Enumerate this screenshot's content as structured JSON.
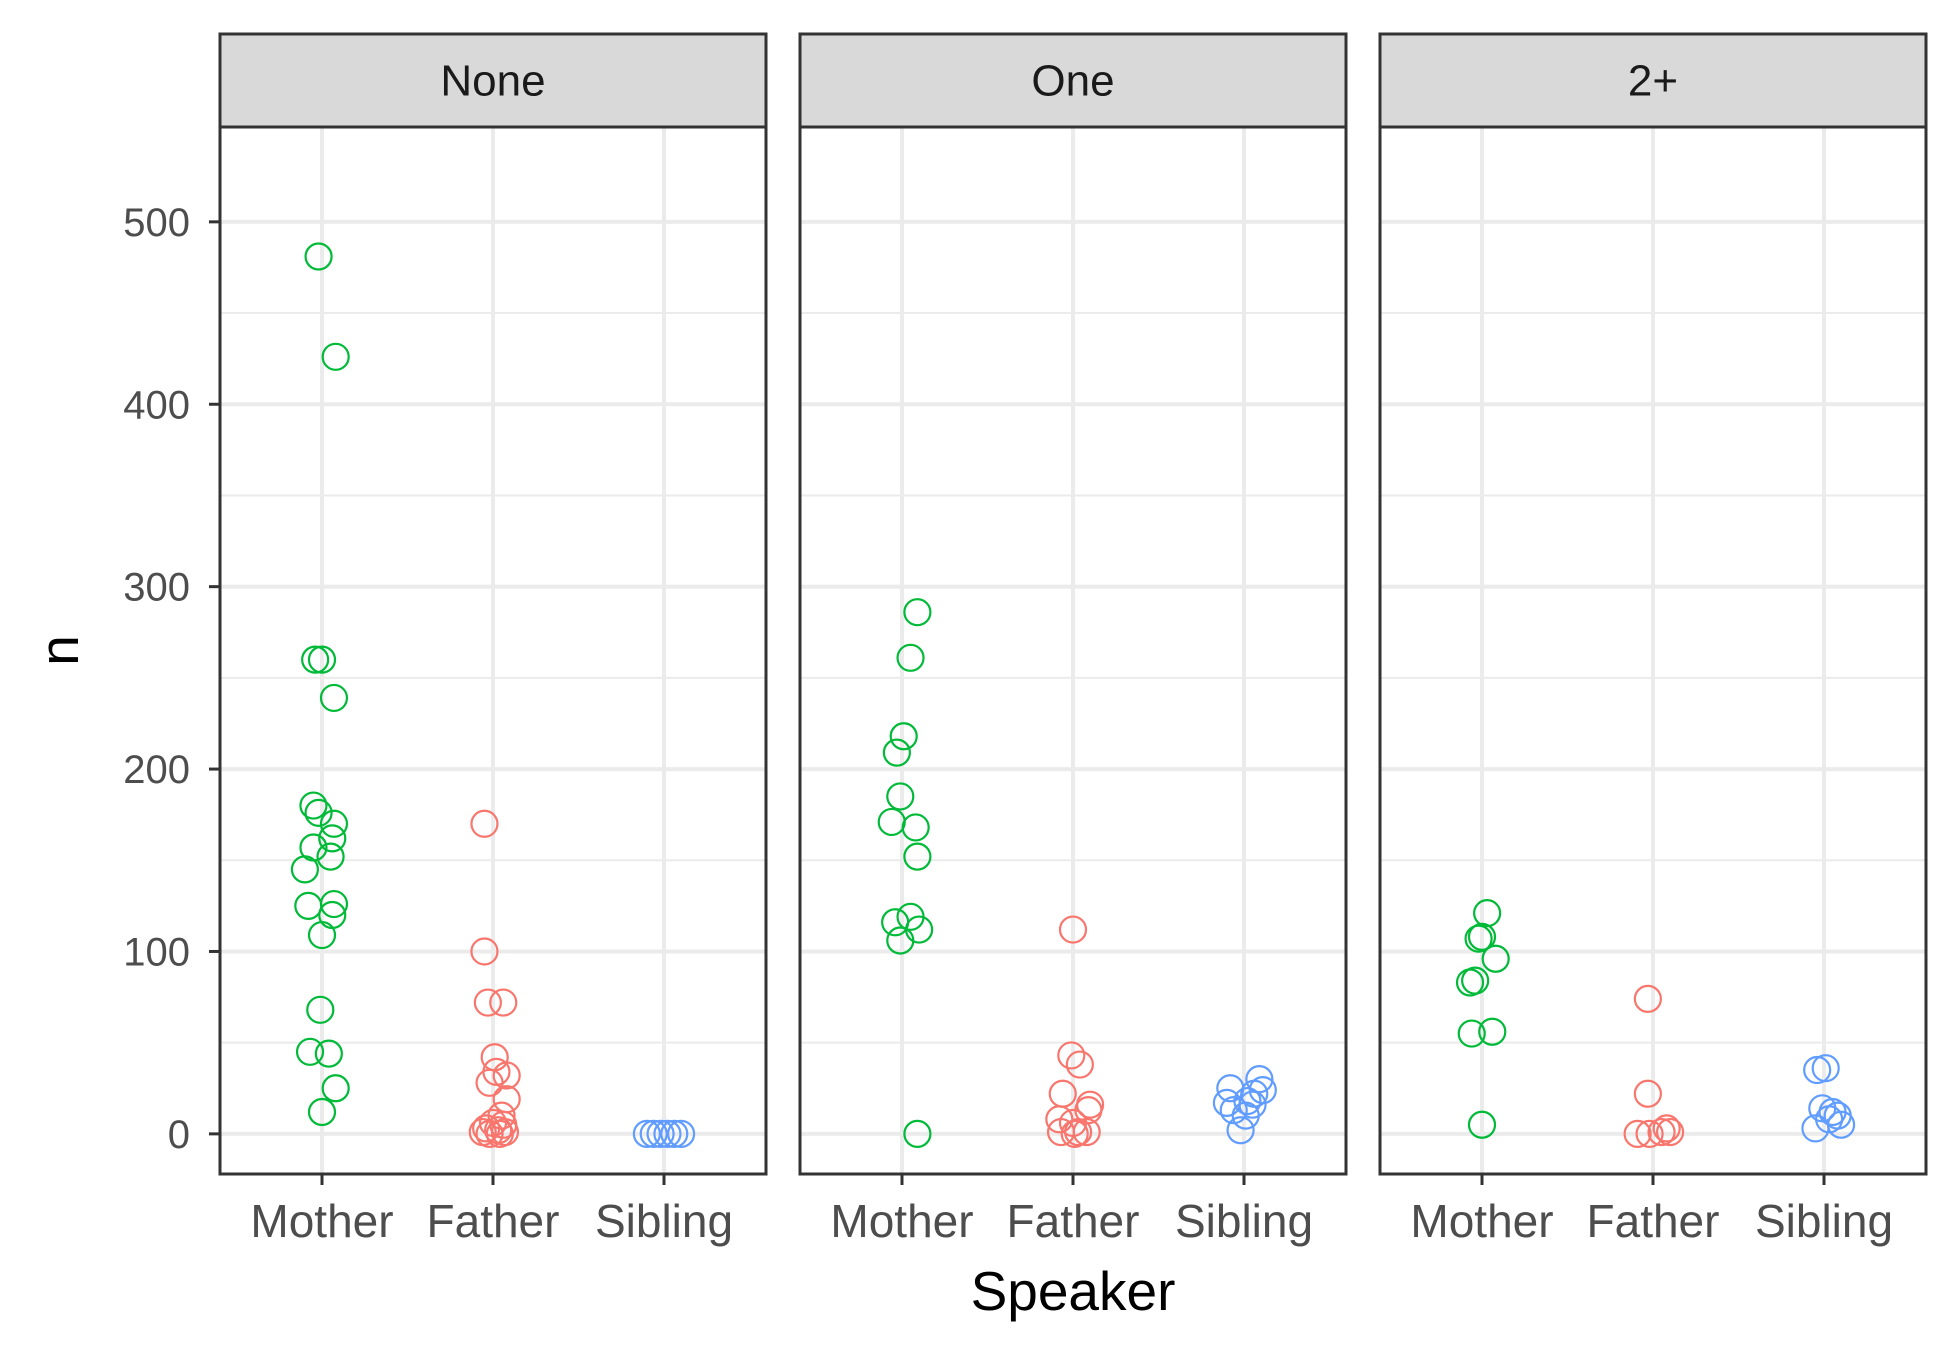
{
  "chart_data": {
    "type": "scatter",
    "xlabel": "Speaker",
    "ylabel": "n",
    "categories": [
      "Mother",
      "Father",
      "Sibling"
    ],
    "ylim": [
      -22,
      552
    ],
    "yticks": [
      0,
      100,
      200,
      300,
      400,
      500
    ],
    "grid": true,
    "colors": {
      "Mother": "#00BA38",
      "Father": "#F8766D",
      "Sibling": "#619CFF"
    },
    "panels": [
      {
        "title": "None",
        "points": {
          "Mother": [
            {
              "jitter": -0.02,
              "y": 481
            },
            {
              "jitter": 0.08,
              "y": 426
            },
            {
              "jitter": -0.04,
              "y": 260
            },
            {
              "jitter": 0.0,
              "y": 260
            },
            {
              "jitter": 0.07,
              "y": 239
            },
            {
              "jitter": -0.05,
              "y": 180
            },
            {
              "jitter": -0.02,
              "y": 176
            },
            {
              "jitter": 0.07,
              "y": 170
            },
            {
              "jitter": 0.06,
              "y": 162
            },
            {
              "jitter": -0.05,
              "y": 157
            },
            {
              "jitter": 0.05,
              "y": 152
            },
            {
              "jitter": -0.1,
              "y": 145
            },
            {
              "jitter": 0.07,
              "y": 126
            },
            {
              "jitter": -0.08,
              "y": 125
            },
            {
              "jitter": 0.06,
              "y": 120
            },
            {
              "jitter": 0.0,
              "y": 109
            },
            {
              "jitter": -0.01,
              "y": 68
            },
            {
              "jitter": -0.07,
              "y": 45
            },
            {
              "jitter": 0.04,
              "y": 44
            },
            {
              "jitter": 0.08,
              "y": 25
            },
            {
              "jitter": 0.0,
              "y": 12
            }
          ],
          "Father": [
            {
              "jitter": -0.05,
              "y": 170
            },
            {
              "jitter": -0.05,
              "y": 100
            },
            {
              "jitter": -0.03,
              "y": 72
            },
            {
              "jitter": 0.06,
              "y": 72
            },
            {
              "jitter": 0.01,
              "y": 42
            },
            {
              "jitter": 0.02,
              "y": 34
            },
            {
              "jitter": 0.08,
              "y": 32
            },
            {
              "jitter": -0.02,
              "y": 28
            },
            {
              "jitter": 0.08,
              "y": 19
            },
            {
              "jitter": 0.05,
              "y": 10
            },
            {
              "jitter": 0.0,
              "y": 6
            },
            {
              "jitter": 0.06,
              "y": 5
            },
            {
              "jitter": -0.04,
              "y": 3
            },
            {
              "jitter": 0.03,
              "y": 2
            },
            {
              "jitter": -0.06,
              "y": 1
            },
            {
              "jitter": 0.07,
              "y": 1
            },
            {
              "jitter": -0.02,
              "y": 0
            },
            {
              "jitter": 0.04,
              "y": 0
            }
          ],
          "Sibling": [
            {
              "jitter": -0.1,
              "y": 0
            },
            {
              "jitter": -0.06,
              "y": 0
            },
            {
              "jitter": -0.02,
              "y": 0
            },
            {
              "jitter": 0.02,
              "y": 0
            },
            {
              "jitter": 0.06,
              "y": 0
            },
            {
              "jitter": 0.1,
              "y": 0
            }
          ]
        }
      },
      {
        "title": "One",
        "points": {
          "Mother": [
            {
              "jitter": 0.09,
              "y": 286
            },
            {
              "jitter": 0.05,
              "y": 261
            },
            {
              "jitter": 0.01,
              "y": 218
            },
            {
              "jitter": -0.03,
              "y": 209
            },
            {
              "jitter": -0.01,
              "y": 185
            },
            {
              "jitter": -0.06,
              "y": 171
            },
            {
              "jitter": 0.08,
              "y": 168
            },
            {
              "jitter": 0.09,
              "y": 152
            },
            {
              "jitter": 0.05,
              "y": 119
            },
            {
              "jitter": -0.04,
              "y": 116
            },
            {
              "jitter": 0.1,
              "y": 112
            },
            {
              "jitter": -0.01,
              "y": 106
            },
            {
              "jitter": 0.09,
              "y": 0
            }
          ],
          "Father": [
            {
              "jitter": 0.0,
              "y": 112
            },
            {
              "jitter": -0.01,
              "y": 43
            },
            {
              "jitter": 0.04,
              "y": 38
            },
            {
              "jitter": -0.06,
              "y": 22
            },
            {
              "jitter": 0.1,
              "y": 16
            },
            {
              "jitter": 0.09,
              "y": 13
            },
            {
              "jitter": -0.08,
              "y": 8
            },
            {
              "jitter": 0.0,
              "y": 6
            },
            {
              "jitter": -0.07,
              "y": 1
            },
            {
              "jitter": 0.03,
              "y": 1
            },
            {
              "jitter": 0.08,
              "y": 1
            },
            {
              "jitter": 0.01,
              "y": 0
            }
          ],
          "Sibling": [
            {
              "jitter": 0.09,
              "y": 30
            },
            {
              "jitter": -0.08,
              "y": 25
            },
            {
              "jitter": 0.11,
              "y": 24
            },
            {
              "jitter": 0.06,
              "y": 22
            },
            {
              "jitter": 0.02,
              "y": 18
            },
            {
              "jitter": -0.1,
              "y": 17
            },
            {
              "jitter": 0.05,
              "y": 16
            },
            {
              "jitter": -0.06,
              "y": 13
            },
            {
              "jitter": 0.01,
              "y": 10
            },
            {
              "jitter": -0.02,
              "y": 2
            }
          ]
        }
      },
      {
        "title": "2+",
        "points": {
          "Mother": [
            {
              "jitter": 0.03,
              "y": 121
            },
            {
              "jitter": -0.02,
              "y": 107
            },
            {
              "jitter": 0.0,
              "y": 108
            },
            {
              "jitter": 0.08,
              "y": 96
            },
            {
              "jitter": -0.07,
              "y": 83
            },
            {
              "jitter": -0.04,
              "y": 84
            },
            {
              "jitter": -0.06,
              "y": 55
            },
            {
              "jitter": 0.06,
              "y": 56
            },
            {
              "jitter": 0.0,
              "y": 5
            }
          ],
          "Father": [
            {
              "jitter": -0.03,
              "y": 74
            },
            {
              "jitter": -0.03,
              "y": 22
            },
            {
              "jitter": 0.08,
              "y": 3
            },
            {
              "jitter": 0.05,
              "y": 1
            },
            {
              "jitter": -0.09,
              "y": 0
            },
            {
              "jitter": -0.02,
              "y": 0
            },
            {
              "jitter": 0.1,
              "y": 1
            }
          ],
          "Sibling": [
            {
              "jitter": -0.04,
              "y": 35
            },
            {
              "jitter": 0.01,
              "y": 36
            },
            {
              "jitter": -0.01,
              "y": 14
            },
            {
              "jitter": 0.05,
              "y": 12
            },
            {
              "jitter": 0.08,
              "y": 10
            },
            {
              "jitter": 0.03,
              "y": 8
            },
            {
              "jitter": 0.1,
              "y": 5
            },
            {
              "jitter": -0.05,
              "y": 3
            }
          ]
        }
      }
    ]
  }
}
